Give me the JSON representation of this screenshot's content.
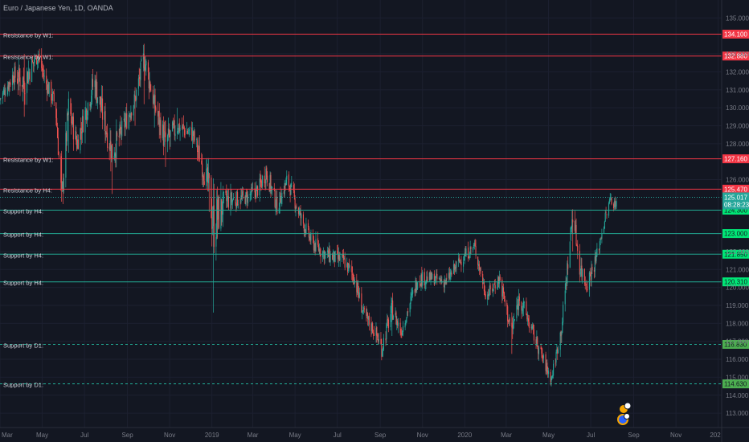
{
  "title": "Euro / Japanese Yen, 1D, OANDA",
  "colors": {
    "background": "#131722",
    "up": "#26a69a",
    "down": "#ef5350",
    "resistance": "#f23645",
    "support": "#22ab94",
    "support_badge": "#00e676",
    "support_badge_dim": "#4caf50",
    "last_price": "#26a69a"
  },
  "icons": [
    "tradingview-events-icon",
    "tradingview-dividend-icon"
  ],
  "chart_data": {
    "type": "candlestick",
    "title": "Euro / Japanese Yen, 1D, OANDA",
    "x_axis": {
      "type": "date",
      "range": [
        "2018-03-01",
        "2021-01-06"
      ],
      "ticks": [
        {
          "label": "Mar",
          "date": "2018-03-01"
        },
        {
          "label": "May",
          "date": "2018-05-01"
        },
        {
          "label": "Jul",
          "date": "2018-07-01"
        },
        {
          "label": "Sep",
          "date": "2018-09-01"
        },
        {
          "label": "Nov",
          "date": "2018-11-01"
        },
        {
          "label": "2019",
          "date": "2019-01-01"
        },
        {
          "label": "Mar",
          "date": "2019-03-01"
        },
        {
          "label": "May",
          "date": "2019-05-01"
        },
        {
          "label": "Jul",
          "date": "2019-07-01"
        },
        {
          "label": "Sep",
          "date": "2019-09-01"
        },
        {
          "label": "Nov",
          "date": "2019-11-01"
        },
        {
          "label": "2020",
          "date": "2020-01-01"
        },
        {
          "label": "Mar",
          "date": "2020-03-01"
        },
        {
          "label": "May",
          "date": "2020-05-01"
        },
        {
          "label": "Jul",
          "date": "2020-07-01"
        },
        {
          "label": "Sep",
          "date": "2020-09-01"
        },
        {
          "label": "Nov",
          "date": "2020-11-01"
        },
        {
          "label": "202",
          "date": "2021-01-01"
        }
      ]
    },
    "y_axis": {
      "position": "right",
      "range": [
        112.2,
        136.0
      ],
      "ticks": [
        {
          "label": "135.000",
          "value": 135
        },
        {
          "label": "133.000",
          "value": 133
        },
        {
          "label": "132.000",
          "value": 132
        },
        {
          "label": "131.000",
          "value": 131
        },
        {
          "label": "130.000",
          "value": 130
        },
        {
          "label": "129.000",
          "value": 129
        },
        {
          "label": "128.000",
          "value": 128
        },
        {
          "label": "126.000",
          "value": 126
        },
        {
          "label": "122.000",
          "value": 122
        },
        {
          "label": "121.000",
          "value": 121
        },
        {
          "label": "120.000",
          "value": 120
        },
        {
          "label": "119.000",
          "value": 119
        },
        {
          "label": "118.000",
          "value": 118
        },
        {
          "label": "117.000",
          "value": 117
        },
        {
          "label": "116.000",
          "value": 116
        },
        {
          "label": "115.000",
          "value": 115
        },
        {
          "label": "114.000",
          "value": 114
        },
        {
          "label": "113.000",
          "value": 113
        }
      ]
    },
    "grid": true,
    "levels": [
      {
        "label": "Resistance by W1:",
        "value": 134.1,
        "price_label": "134.100",
        "kind": "resistance",
        "style": "solid"
      },
      {
        "label": "Resistance by W1:",
        "value": 132.88,
        "price_label": "132.880",
        "kind": "resistance",
        "style": "solid"
      },
      {
        "label": "Resistance by W1:",
        "value": 127.16,
        "price_label": "127.160",
        "kind": "resistance",
        "style": "solid"
      },
      {
        "label": "Resistance by H4:",
        "value": 125.47,
        "price_label": "125.470",
        "kind": "resistance",
        "style": "solid"
      },
      {
        "label": "Support by H4:",
        "value": 124.3,
        "price_label": "124.300",
        "kind": "support",
        "style": "solid"
      },
      {
        "label": "Support by H4:",
        "value": 123.0,
        "price_label": "123.000",
        "kind": "support",
        "style": "solid"
      },
      {
        "label": "Support by H4:",
        "value": 121.85,
        "price_label": "121.850",
        "kind": "support",
        "style": "solid"
      },
      {
        "label": "Support by H4:",
        "value": 120.31,
        "price_label": "120.310",
        "kind": "support",
        "style": "solid"
      },
      {
        "label": "Support by D1:",
        "value": 116.83,
        "price_label": "116.830",
        "kind": "support",
        "style": "dashed"
      },
      {
        "label": "Support by D1:",
        "value": 114.63,
        "price_label": "114.630",
        "kind": "support",
        "style": "dashed"
      }
    ],
    "last_price": {
      "value": 125.017,
      "label": "125.017",
      "countdown": "08:28:23"
    },
    "price_path": [
      {
        "date": "2018-03-01",
        "close": 130.5,
        "high": 131.2,
        "low": 129.8
      },
      {
        "date": "2018-03-20",
        "close": 131.8,
        "high": 132.6,
        "low": 130.6
      },
      {
        "date": "2018-04-05",
        "close": 131.5,
        "high": 133.0,
        "low": 129.5
      },
      {
        "date": "2018-04-25",
        "close": 133.0,
        "high": 133.6,
        "low": 131.8
      },
      {
        "date": "2018-05-05",
        "close": 131.5,
        "high": 132.4,
        "low": 130.6
      },
      {
        "date": "2018-05-20",
        "close": 130.2,
        "high": 131.1,
        "low": 129.0
      },
      {
        "date": "2018-05-29",
        "close": 124.9,
        "high": 127.6,
        "low": 124.6
      },
      {
        "date": "2018-06-08",
        "close": 130.0,
        "high": 130.6,
        "low": 127.5
      },
      {
        "date": "2018-06-20",
        "close": 128.0,
        "high": 129.0,
        "low": 126.7
      },
      {
        "date": "2018-07-15",
        "close": 131.5,
        "high": 131.9,
        "low": 129.0
      },
      {
        "date": "2018-08-10",
        "close": 127.5,
        "high": 128.6,
        "low": 125.2
      },
      {
        "date": "2018-08-25",
        "close": 128.8,
        "high": 129.6,
        "low": 127.2
      },
      {
        "date": "2018-09-12",
        "close": 130.5,
        "high": 131.0,
        "low": 129.0
      },
      {
        "date": "2018-09-25",
        "close": 132.8,
        "high": 133.1,
        "low": 130.2
      },
      {
        "date": "2018-10-10",
        "close": 130.2,
        "high": 131.3,
        "low": 128.9
      },
      {
        "date": "2018-10-26",
        "close": 128.0,
        "high": 129.8,
        "low": 126.7
      },
      {
        "date": "2018-11-12",
        "close": 129.0,
        "high": 130.0,
        "low": 127.7
      },
      {
        "date": "2018-12-05",
        "close": 128.5,
        "high": 129.4,
        "low": 127.5
      },
      {
        "date": "2018-12-28",
        "close": 125.5,
        "high": 127.5,
        "low": 124.2
      },
      {
        "date": "2019-01-03",
        "close": 123.5,
        "high": 125.3,
        "low": 118.6
      },
      {
        "date": "2019-01-20",
        "close": 124.8,
        "high": 125.5,
        "low": 123.2
      },
      {
        "date": "2019-02-20",
        "close": 125.0,
        "high": 125.8,
        "low": 124.3
      },
      {
        "date": "2019-03-10",
        "close": 125.5,
        "high": 126.4,
        "low": 124.6
      },
      {
        "date": "2019-03-20",
        "close": 126.5,
        "high": 127.4,
        "low": 125.0
      },
      {
        "date": "2019-04-05",
        "close": 124.5,
        "high": 125.6,
        "low": 123.9
      },
      {
        "date": "2019-04-20",
        "close": 126.0,
        "high": 126.6,
        "low": 124.7
      },
      {
        "date": "2019-05-08",
        "close": 124.0,
        "high": 125.0,
        "low": 123.3
      },
      {
        "date": "2019-05-25",
        "close": 122.5,
        "high": 123.5,
        "low": 121.8
      },
      {
        "date": "2019-06-15",
        "close": 121.8,
        "high": 122.6,
        "low": 120.9
      },
      {
        "date": "2019-07-10",
        "close": 121.5,
        "high": 122.3,
        "low": 120.7
      },
      {
        "date": "2019-07-25",
        "close": 120.6,
        "high": 121.4,
        "low": 119.6
      },
      {
        "date": "2019-08-08",
        "close": 118.5,
        "high": 119.6,
        "low": 117.9
      },
      {
        "date": "2019-08-25",
        "close": 117.5,
        "high": 118.5,
        "low": 116.9
      },
      {
        "date": "2019-09-03",
        "close": 116.6,
        "high": 117.8,
        "low": 115.9
      },
      {
        "date": "2019-09-18",
        "close": 118.8,
        "high": 119.5,
        "low": 117.3
      },
      {
        "date": "2019-10-01",
        "close": 117.5,
        "high": 118.2,
        "low": 116.9
      },
      {
        "date": "2019-10-25",
        "close": 120.5,
        "high": 121.3,
        "low": 119.5
      },
      {
        "date": "2019-11-15",
        "close": 120.5,
        "high": 121.1,
        "low": 119.8
      },
      {
        "date": "2019-12-05",
        "close": 120.3,
        "high": 121.0,
        "low": 119.6
      },
      {
        "date": "2019-12-25",
        "close": 121.5,
        "high": 122.1,
        "low": 120.6
      },
      {
        "date": "2020-01-15",
        "close": 122.3,
        "high": 122.7,
        "low": 121.3
      },
      {
        "date": "2020-02-01",
        "close": 119.5,
        "high": 120.3,
        "low": 119.0
      },
      {
        "date": "2020-02-20",
        "close": 120.5,
        "high": 121.2,
        "low": 119.6
      },
      {
        "date": "2020-03-09",
        "close": 117.5,
        "high": 118.7,
        "low": 116.3
      },
      {
        "date": "2020-03-20",
        "close": 119.5,
        "high": 120.2,
        "low": 118.2
      },
      {
        "date": "2020-04-05",
        "close": 117.8,
        "high": 118.5,
        "low": 116.8
      },
      {
        "date": "2020-04-25",
        "close": 115.8,
        "high": 116.6,
        "low": 115.2
      },
      {
        "date": "2020-05-05",
        "close": 114.9,
        "high": 115.6,
        "low": 114.4
      },
      {
        "date": "2020-05-20",
        "close": 117.8,
        "high": 118.4,
        "low": 116.6
      },
      {
        "date": "2020-06-05",
        "close": 124.2,
        "high": 124.4,
        "low": 122.0
      },
      {
        "date": "2020-06-15",
        "close": 121.2,
        "high": 122.6,
        "low": 120.4
      },
      {
        "date": "2020-06-25",
        "close": 120.2,
        "high": 121.1,
        "low": 119.3
      },
      {
        "date": "2020-07-08",
        "close": 121.5,
        "high": 122.2,
        "low": 120.5
      },
      {
        "date": "2020-07-20",
        "close": 123.6,
        "high": 124.1,
        "low": 122.8
      },
      {
        "date": "2020-07-30",
        "close": 125.0,
        "high": 125.5,
        "low": 124.2
      },
      {
        "date": "2020-08-04",
        "close": 124.6,
        "high": 125.1,
        "low": 124.0
      },
      {
        "date": "2020-08-10",
        "close": 125.017,
        "high": 125.4,
        "low": 124.5
      }
    ]
  }
}
